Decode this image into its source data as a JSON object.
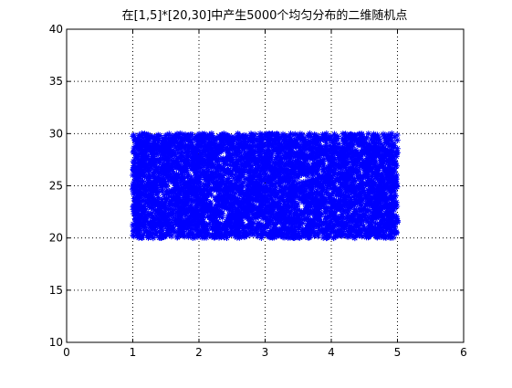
{
  "figure": {
    "background": "#ffffff"
  },
  "chart_data": {
    "type": "scatter",
    "title": "在[1,5]*[20,30]中产生5000个均匀分布的二维随机点",
    "xlabel": "",
    "ylabel": "",
    "xlim": [
      0,
      6
    ],
    "ylim": [
      10,
      40
    ],
    "xticks": [
      0,
      1,
      2,
      3,
      4,
      5,
      6
    ],
    "yticks": [
      10,
      15,
      20,
      25,
      30,
      35,
      40
    ],
    "grid": true,
    "grid_style": "dotted",
    "marker": "*",
    "marker_color": "#0000ff",
    "series": [
      {
        "count": 5000,
        "distribution": "uniform",
        "x_range": [
          1,
          5
        ],
        "y_range": [
          20,
          30
        ]
      }
    ]
  }
}
